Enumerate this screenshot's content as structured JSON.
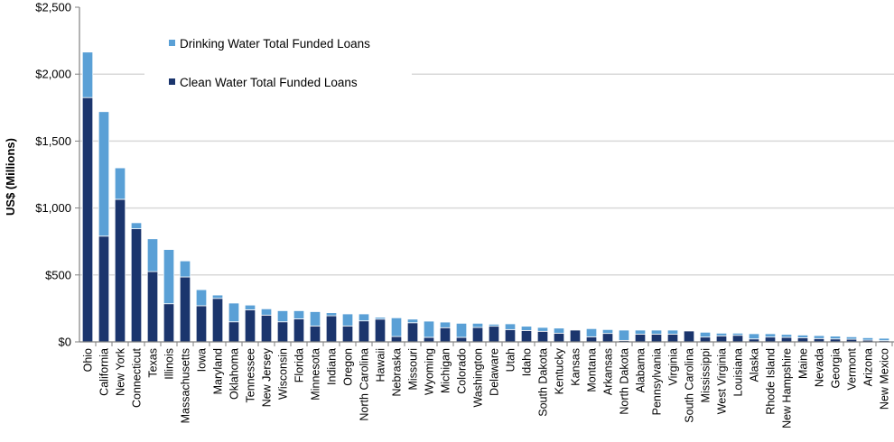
{
  "chart_data": {
    "type": "bar",
    "stacked": true,
    "title": "",
    "xlabel": "",
    "ylabel": "US$ (Millions)",
    "ylim": [
      0,
      2500
    ],
    "yticks": [
      0,
      500,
      1000,
      1500,
      2000,
      2500
    ],
    "ytick_labels": [
      "$0",
      "$500",
      "$1,000",
      "$1,500",
      "$2,000",
      "$2,500"
    ],
    "grid": true,
    "legend_position": "top-left",
    "categories": [
      "Ohio",
      "California",
      "New York",
      "Connecticut",
      "Texas",
      "Illinois",
      "Massachusetts",
      "Iowa",
      "Maryland",
      "Oklahoma",
      "Tennessee",
      "New Jersey",
      "Wisconsin",
      "Florida",
      "Minnesota",
      "Indiana",
      "Oregon",
      "North Carolina",
      "Hawaii",
      "Nebraska",
      "Missouri",
      "Wyoming",
      "Michigan",
      "Colorado",
      "Washington",
      "Delaware",
      "Utah",
      "Idaho",
      "South Dakota",
      "Kentucky",
      "Kansas",
      "Montana",
      "Arkansas",
      "North Dakota",
      "Alabama",
      "Pennsylvania",
      "Virginia",
      "South Carolina",
      "Mississippi",
      "West Virginia",
      "Louisiana",
      "Alaska",
      "Rhode Island",
      "New Hampshire",
      "Maine",
      "Nevada",
      "Georgia",
      "Vermont",
      "Arizona",
      "New Mexico"
    ],
    "series": [
      {
        "name": "Clean Water Total Funded Loans",
        "color": "#1b356d",
        "values": [
          1825,
          790,
          1065,
          845,
          525,
          285,
          485,
          270,
          325,
          150,
          240,
          200,
          150,
          172,
          119,
          195,
          119,
          157,
          170,
          40,
          143,
          34,
          106,
          34,
          108,
          117,
          92,
          85,
          79,
          65,
          88,
          38,
          63,
          11,
          58,
          58,
          58,
          82,
          36,
          45,
          49,
          22,
          36,
          34,
          31,
          25,
          22,
          20,
          13,
          9
        ]
      },
      {
        "name": "Drinking Water Total Funded Loans",
        "color": "#5aa0d6",
        "values": [
          340,
          930,
          235,
          45,
          245,
          405,
          120,
          120,
          25,
          140,
          35,
          47,
          83,
          61,
          107,
          23,
          90,
          52,
          14,
          140,
          27,
          121,
          42,
          105,
          31,
          15,
          43,
          32,
          29,
          38,
          0,
          61,
          29,
          77,
          30,
          30,
          30,
          3,
          36,
          20,
          16,
          39,
          25,
          22,
          20,
          22,
          21,
          18,
          18,
          18
        ]
      }
    ],
    "legend": [
      "Drinking Water Total Funded Loans",
      "Clean Water Total Funded Loans"
    ]
  }
}
